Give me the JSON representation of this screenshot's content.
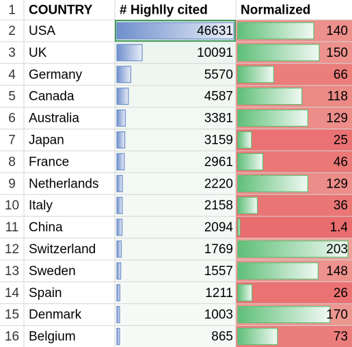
{
  "table": {
    "header": [
      "COUNTRY",
      "# Highlly cited",
      "Normalized"
    ],
    "row_numbers": [
      1,
      2,
      3,
      4,
      5,
      6,
      7,
      8,
      9,
      10,
      11,
      12,
      13,
      14,
      15,
      16
    ],
    "rows": [
      [
        "USA",
        46631,
        140
      ],
      [
        "UK",
        10091,
        150
      ],
      [
        "Germany",
        5570,
        66
      ],
      [
        "Canada",
        4587,
        118
      ],
      [
        "Australia",
        3381,
        129
      ],
      [
        "Japan",
        3159,
        25
      ],
      [
        "France",
        2961,
        46
      ],
      [
        "Netherlands",
        2220,
        129
      ],
      [
        "Italy",
        2158,
        36
      ],
      [
        "China",
        2094,
        1.4
      ],
      [
        "Switzerland",
        1769,
        203
      ],
      [
        "Sweden",
        1557,
        148
      ],
      [
        "Spain",
        1211,
        26
      ],
      [
        "Denmark",
        1003,
        170
      ],
      [
        "Belgium",
        865,
        73
      ]
    ]
  }
}
